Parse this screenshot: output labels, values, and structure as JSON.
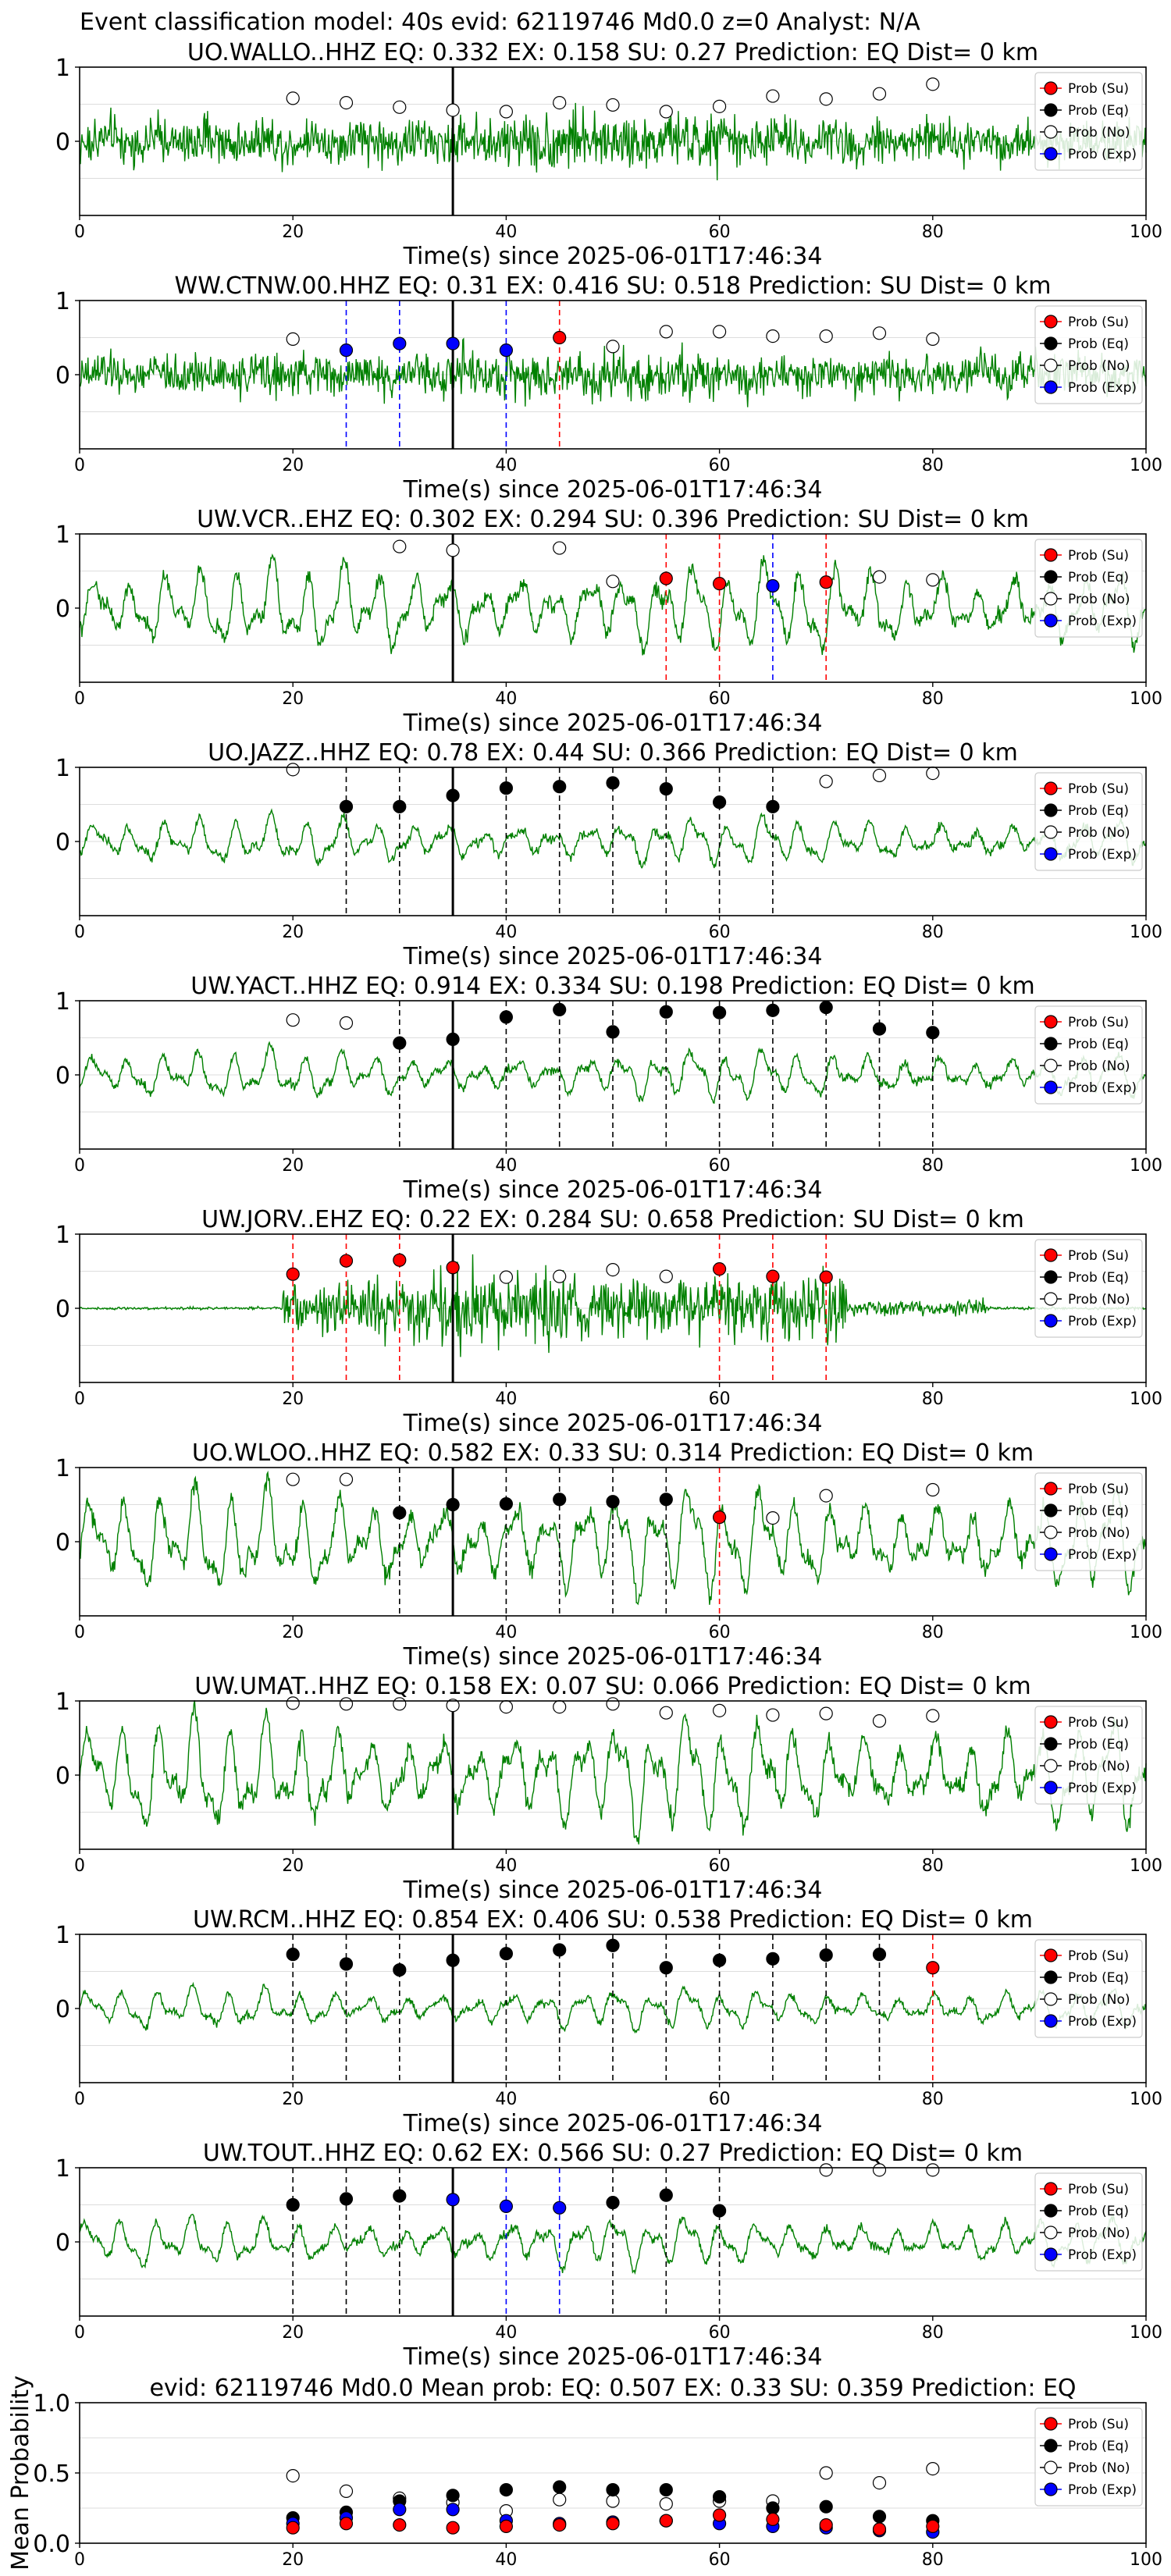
{
  "figure_title": "Event classification model: 40s evid: 62119746 Md0.0 z=0 Analyst: N/A",
  "legend_labels": [
    "Prob (Su)",
    "Prob (Eq)",
    "Prob (No)",
    "Prob (Exp)"
  ],
  "colors": {
    "su": "#ff0000",
    "eq": "#000000",
    "no": "#ffffff",
    "exp": "#0000ff",
    "trace": "#008000"
  },
  "chart_data": [
    {
      "type": "scatter",
      "title": "UO.WALLO..HHZ   EQ: 0.332  EX: 0.158  SU: 0.27   Prediction: EQ    Dist= 0 km",
      "xlabel": "Time(s) since 2025-06-01T17:46:34",
      "xlim": [
        0,
        100
      ],
      "ylim": [
        -1,
        1
      ],
      "xticks": [
        "0",
        "20",
        "40",
        "60",
        "80",
        "100"
      ],
      "yticks": [
        "0",
        "1"
      ],
      "waveform": {
        "style": "noisy",
        "amp": 0.35,
        "color": "trace"
      },
      "event_line_x": 35,
      "series": [
        {
          "key": "no",
          "x": [
            20,
            25,
            30,
            35,
            40,
            45,
            50,
            55,
            60,
            65,
            70,
            75,
            80
          ],
          "y": [
            0.58,
            0.52,
            0.46,
            0.42,
            0.4,
            0.52,
            0.49,
            0.4,
            0.47,
            0.61,
            0.57,
            0.64,
            0.77
          ]
        }
      ],
      "vlines": []
    },
    {
      "type": "scatter",
      "title": "WW.CTNW.00.HHZ   EQ: 0.31  EX: 0.416  SU: 0.518   Prediction: SU    Dist= 0 km",
      "xlabel": "Time(s) since 2025-06-01T17:46:34",
      "xlim": [
        0,
        100
      ],
      "ylim": [
        -1,
        1
      ],
      "xticks": [
        "0",
        "20",
        "40",
        "60",
        "80",
        "100"
      ],
      "yticks": [
        "0",
        "1"
      ],
      "waveform": {
        "style": "noisy",
        "amp": 0.3,
        "color": "trace"
      },
      "event_line_x": 35,
      "series": [
        {
          "key": "no",
          "x": [
            20,
            50,
            55,
            60,
            65,
            70,
            75,
            80
          ],
          "y": [
            0.48,
            0.38,
            0.58,
            0.58,
            0.52,
            0.52,
            0.56,
            0.48
          ]
        },
        {
          "key": "exp",
          "x": [
            25,
            30,
            35,
            40
          ],
          "y": [
            0.33,
            0.42,
            0.42,
            0.33
          ]
        },
        {
          "key": "su",
          "x": [
            45
          ],
          "y": [
            0.5
          ]
        }
      ],
      "vlines": [
        {
          "x": 25,
          "key": "exp"
        },
        {
          "x": 30,
          "key": "exp"
        },
        {
          "x": 40,
          "key": "exp"
        },
        {
          "x": 45,
          "key": "su"
        }
      ]
    },
    {
      "type": "scatter",
      "title": "UW.VCR..EHZ   EQ: 0.302  EX: 0.294  SU: 0.396   Prediction: SU    Dist= 0 km",
      "xlabel": "Time(s) since 2025-06-01T17:46:34",
      "xlim": [
        0,
        100
      ],
      "ylim": [
        -1,
        1
      ],
      "xticks": [
        "0",
        "20",
        "40",
        "60",
        "80",
        "100"
      ],
      "yticks": [
        "0",
        "1"
      ],
      "waveform": {
        "style": "oscillating",
        "amp": 0.55,
        "color": "trace"
      },
      "event_line_x": 35,
      "series": [
        {
          "key": "no",
          "x": [
            30,
            35,
            45,
            50,
            75,
            80
          ],
          "y": [
            0.83,
            0.78,
            0.81,
            0.36,
            0.42,
            0.38
          ]
        },
        {
          "key": "su",
          "x": [
            55,
            60,
            70
          ],
          "y": [
            0.4,
            0.33,
            0.35
          ]
        },
        {
          "key": "exp",
          "x": [
            65
          ],
          "y": [
            0.3
          ]
        }
      ],
      "vlines": [
        {
          "x": 55,
          "key": "su"
        },
        {
          "x": 60,
          "key": "su"
        },
        {
          "x": 65,
          "key": "exp"
        },
        {
          "x": 70,
          "key": "su"
        }
      ]
    },
    {
      "type": "scatter",
      "title": "UO.JAZZ..HHZ   EQ: 0.78  EX: 0.44  SU: 0.366   Prediction: EQ    Dist= 0 km",
      "xlabel": "Time(s) since 2025-06-01T17:46:34",
      "xlim": [
        0,
        100
      ],
      "ylim": [
        -1,
        1
      ],
      "xticks": [
        "0",
        "20",
        "40",
        "60",
        "80",
        "100"
      ],
      "yticks": [
        "0",
        "1"
      ],
      "waveform": {
        "style": "oscillating",
        "amp": 0.3,
        "color": "trace"
      },
      "event_line_x": 35,
      "series": [
        {
          "key": "no",
          "x": [
            20,
            70,
            75,
            80
          ],
          "y": [
            0.97,
            0.81,
            0.89,
            0.92
          ]
        },
        {
          "key": "eq",
          "x": [
            25,
            30,
            35,
            40,
            45,
            50,
            55,
            60,
            65
          ],
          "y": [
            0.47,
            0.47,
            0.62,
            0.72,
            0.74,
            0.79,
            0.71,
            0.53,
            0.47
          ]
        }
      ],
      "vlines": [
        {
          "x": 25,
          "key": "eq"
        },
        {
          "x": 30,
          "key": "eq"
        },
        {
          "x": 40,
          "key": "eq"
        },
        {
          "x": 45,
          "key": "eq"
        },
        {
          "x": 50,
          "key": "eq"
        },
        {
          "x": 55,
          "key": "eq"
        },
        {
          "x": 60,
          "key": "eq"
        },
        {
          "x": 65,
          "key": "eq"
        }
      ]
    },
    {
      "type": "scatter",
      "title": "UW.YACT..HHZ   EQ: 0.914  EX: 0.334  SU: 0.198   Prediction: EQ    Dist= 0 km",
      "xlabel": "Time(s) since 2025-06-01T17:46:34",
      "xlim": [
        0,
        100
      ],
      "ylim": [
        -1,
        1
      ],
      "xticks": [
        "0",
        "20",
        "40",
        "60",
        "80",
        "100"
      ],
      "yticks": [
        "0",
        "1"
      ],
      "waveform": {
        "style": "oscillating",
        "amp": 0.3,
        "color": "trace"
      },
      "event_line_x": 35,
      "series": [
        {
          "key": "no",
          "x": [
            20,
            25
          ],
          "y": [
            0.74,
            0.7
          ]
        },
        {
          "key": "eq",
          "x": [
            30,
            35,
            40,
            45,
            50,
            55,
            60,
            65,
            70,
            75,
            80
          ],
          "y": [
            0.43,
            0.48,
            0.78,
            0.88,
            0.58,
            0.85,
            0.84,
            0.87,
            0.91,
            0.62,
            0.57
          ]
        }
      ],
      "vlines": [
        {
          "x": 30,
          "key": "eq"
        },
        {
          "x": 40,
          "key": "eq"
        },
        {
          "x": 45,
          "key": "eq"
        },
        {
          "x": 50,
          "key": "eq"
        },
        {
          "x": 55,
          "key": "eq"
        },
        {
          "x": 60,
          "key": "eq"
        },
        {
          "x": 65,
          "key": "eq"
        },
        {
          "x": 70,
          "key": "eq"
        },
        {
          "x": 75,
          "key": "eq"
        },
        {
          "x": 80,
          "key": "eq"
        }
      ]
    },
    {
      "type": "scatter",
      "title": "UW.JORV..EHZ   EQ: 0.22  EX: 0.284  SU: 0.658   Prediction: SU    Dist= 0 km",
      "xlabel": "Time(s) since 2025-06-01T17:46:34",
      "xlim": [
        0,
        100
      ],
      "ylim": [
        -1,
        1
      ],
      "xticks": [
        "0",
        "20",
        "40",
        "60",
        "80",
        "100"
      ],
      "yticks": [
        "0",
        "1"
      ],
      "waveform": {
        "style": "burst",
        "amp": 0.55,
        "color": "trace"
      },
      "event_line_x": 35,
      "series": [
        {
          "key": "su",
          "x": [
            20,
            25,
            30,
            35,
            60,
            65,
            70
          ],
          "y": [
            0.46,
            0.64,
            0.65,
            0.55,
            0.53,
            0.43,
            0.42
          ]
        },
        {
          "key": "no",
          "x": [
            40,
            45,
            50,
            55
          ],
          "y": [
            0.42,
            0.43,
            0.52,
            0.43
          ]
        }
      ],
      "vlines": [
        {
          "x": 20,
          "key": "su"
        },
        {
          "x": 25,
          "key": "su"
        },
        {
          "x": 30,
          "key": "su"
        },
        {
          "x": 60,
          "key": "su"
        },
        {
          "x": 65,
          "key": "su"
        },
        {
          "x": 70,
          "key": "su"
        }
      ]
    },
    {
      "type": "scatter",
      "title": "UO.WLOO..HHZ   EQ: 0.582  EX: 0.33  SU: 0.314   Prediction: EQ    Dist= 0 km",
      "xlabel": "Time(s) since 2025-06-01T17:46:34",
      "xlim": [
        0,
        100
      ],
      "ylim": [
        -1,
        1
      ],
      "xticks": [
        "0",
        "20",
        "40",
        "60",
        "80",
        "100"
      ],
      "yticks": [
        "0",
        "1"
      ],
      "waveform": {
        "style": "oscillating",
        "amp": 0.65,
        "color": "trace"
      },
      "event_line_x": 35,
      "series": [
        {
          "key": "no",
          "x": [
            20,
            25,
            65,
            70,
            80
          ],
          "y": [
            0.84,
            0.84,
            0.32,
            0.62,
            0.7
          ]
        },
        {
          "key": "eq",
          "x": [
            30,
            35,
            40,
            45,
            50,
            55
          ],
          "y": [
            0.39,
            0.5,
            0.51,
            0.57,
            0.54,
            0.57
          ]
        },
        {
          "key": "su",
          "x": [
            60
          ],
          "y": [
            0.33
          ]
        }
      ],
      "vlines": [
        {
          "x": 30,
          "key": "eq"
        },
        {
          "x": 40,
          "key": "eq"
        },
        {
          "x": 45,
          "key": "eq"
        },
        {
          "x": 50,
          "key": "eq"
        },
        {
          "x": 55,
          "key": "eq"
        },
        {
          "x": 60,
          "key": "su"
        }
      ]
    },
    {
      "type": "scatter",
      "title": "UW.UMAT..HHZ   EQ: 0.158  EX: 0.07  SU: 0.066   Prediction: EQ    Dist= 0 km",
      "xlabel": "Time(s) since 2025-06-01T17:46:34",
      "xlim": [
        0,
        100
      ],
      "ylim": [
        -1,
        1
      ],
      "xticks": [
        "0",
        "20",
        "40",
        "60",
        "80",
        "100"
      ],
      "yticks": [
        "0",
        "1"
      ],
      "waveform": {
        "style": "oscillating",
        "amp": 0.7,
        "color": "trace"
      },
      "event_line_x": 35,
      "series": [
        {
          "key": "no",
          "x": [
            20,
            25,
            30,
            35,
            40,
            45,
            50,
            55,
            60,
            65,
            70,
            75,
            80
          ],
          "y": [
            0.97,
            0.96,
            0.96,
            0.94,
            0.92,
            0.92,
            0.96,
            0.84,
            0.87,
            0.81,
            0.83,
            0.73,
            0.8
          ]
        }
      ],
      "vlines": []
    },
    {
      "type": "scatter",
      "title": "UW.RCM..HHZ   EQ: 0.854  EX: 0.406  SU: 0.538   Prediction: EQ    Dist= 0 km",
      "xlabel": "Time(s) since 2025-06-01T17:46:34",
      "xlim": [
        0,
        100
      ],
      "ylim": [
        -1,
        1
      ],
      "xticks": [
        "0",
        "20",
        "40",
        "60",
        "80",
        "100"
      ],
      "yticks": [
        "0",
        "1"
      ],
      "waveform": {
        "style": "oscillating",
        "amp": 0.25,
        "color": "trace"
      },
      "event_line_x": 35,
      "series": [
        {
          "key": "eq",
          "x": [
            20,
            25,
            30,
            35,
            40,
            45,
            50,
            55,
            60,
            65,
            70,
            75
          ],
          "y": [
            0.73,
            0.6,
            0.52,
            0.65,
            0.74,
            0.79,
            0.85,
            0.55,
            0.65,
            0.67,
            0.72,
            0.73
          ]
        },
        {
          "key": "su",
          "x": [
            80
          ],
          "y": [
            0.55
          ]
        }
      ],
      "vlines": [
        {
          "x": 20,
          "key": "eq"
        },
        {
          "x": 25,
          "key": "eq"
        },
        {
          "x": 30,
          "key": "eq"
        },
        {
          "x": 40,
          "key": "eq"
        },
        {
          "x": 45,
          "key": "eq"
        },
        {
          "x": 50,
          "key": "eq"
        },
        {
          "x": 55,
          "key": "eq"
        },
        {
          "x": 60,
          "key": "eq"
        },
        {
          "x": 65,
          "key": "eq"
        },
        {
          "x": 70,
          "key": "eq"
        },
        {
          "x": 75,
          "key": "eq"
        },
        {
          "x": 80,
          "key": "su"
        }
      ]
    },
    {
      "type": "scatter",
      "title": "UW.TOUT..HHZ   EQ: 0.62  EX: 0.566  SU: 0.27   Prediction: EQ    Dist= 0 km",
      "xlabel": "Time(s) since 2025-06-01T17:46:34",
      "xlim": [
        0,
        100
      ],
      "ylim": [
        -1,
        1
      ],
      "xticks": [
        "0",
        "20",
        "40",
        "60",
        "80",
        "100"
      ],
      "yticks": [
        "0",
        "1"
      ],
      "waveform": {
        "style": "oscillating",
        "amp": 0.3,
        "color": "trace"
      },
      "event_line_x": 35,
      "series": [
        {
          "key": "eq",
          "x": [
            20,
            25,
            30,
            50,
            55,
            60
          ],
          "y": [
            0.5,
            0.58,
            0.62,
            0.53,
            0.63,
            0.42
          ]
        },
        {
          "key": "exp",
          "x": [
            35,
            40,
            45
          ],
          "y": [
            0.57,
            0.48,
            0.46
          ]
        },
        {
          "key": "no",
          "x": [
            70,
            75,
            80
          ],
          "y": [
            0.97,
            0.97,
            0.97
          ]
        }
      ],
      "vlines": [
        {
          "x": 20,
          "key": "eq"
        },
        {
          "x": 25,
          "key": "eq"
        },
        {
          "x": 30,
          "key": "eq"
        },
        {
          "x": 40,
          "key": "exp"
        },
        {
          "x": 45,
          "key": "exp"
        },
        {
          "x": 50,
          "key": "eq"
        },
        {
          "x": 55,
          "key": "eq"
        },
        {
          "x": 60,
          "key": "eq"
        }
      ]
    },
    {
      "type": "scatter",
      "title": "evid: 62119746  Md0.0   Mean prob:   EQ: 0.507  EX: 0.33  SU: 0.359   Prediction: EQ",
      "xlabel": "",
      "ylabel": "Mean Probability",
      "xlim": [
        0,
        100
      ],
      "ylim": [
        0,
        1
      ],
      "xticks": [
        "0",
        "20",
        "40",
        "60",
        "80",
        "100"
      ],
      "yticks": [
        "0.0",
        "0.5",
        "1.0"
      ],
      "event_line_x": null,
      "series": [
        {
          "key": "no",
          "x": [
            20,
            25,
            30,
            35,
            40,
            45,
            50,
            55,
            60,
            65,
            70,
            75,
            80
          ],
          "y": [
            0.48,
            0.37,
            0.32,
            0.29,
            0.23,
            0.31,
            0.3,
            0.28,
            0.3,
            0.3,
            0.5,
            0.43,
            0.53
          ]
        },
        {
          "key": "eq",
          "x": [
            20,
            25,
            30,
            35,
            40,
            45,
            50,
            55,
            60,
            65,
            70,
            75,
            80
          ],
          "y": [
            0.18,
            0.22,
            0.3,
            0.34,
            0.38,
            0.4,
            0.38,
            0.38,
            0.33,
            0.25,
            0.26,
            0.19,
            0.16
          ]
        },
        {
          "key": "exp",
          "x": [
            20,
            25,
            30,
            35,
            40,
            45,
            50,
            55,
            60,
            65,
            70,
            75,
            80
          ],
          "y": [
            0.14,
            0.18,
            0.24,
            0.24,
            0.16,
            0.14,
            0.15,
            0.16,
            0.14,
            0.12,
            0.11,
            0.09,
            0.08
          ]
        },
        {
          "key": "su",
          "x": [
            20,
            25,
            30,
            35,
            40,
            45,
            50,
            55,
            60,
            65,
            70,
            75,
            80
          ],
          "y": [
            0.11,
            0.14,
            0.13,
            0.11,
            0.12,
            0.13,
            0.14,
            0.16,
            0.2,
            0.17,
            0.13,
            0.1,
            0.12
          ]
        }
      ],
      "vlines": []
    }
  ]
}
